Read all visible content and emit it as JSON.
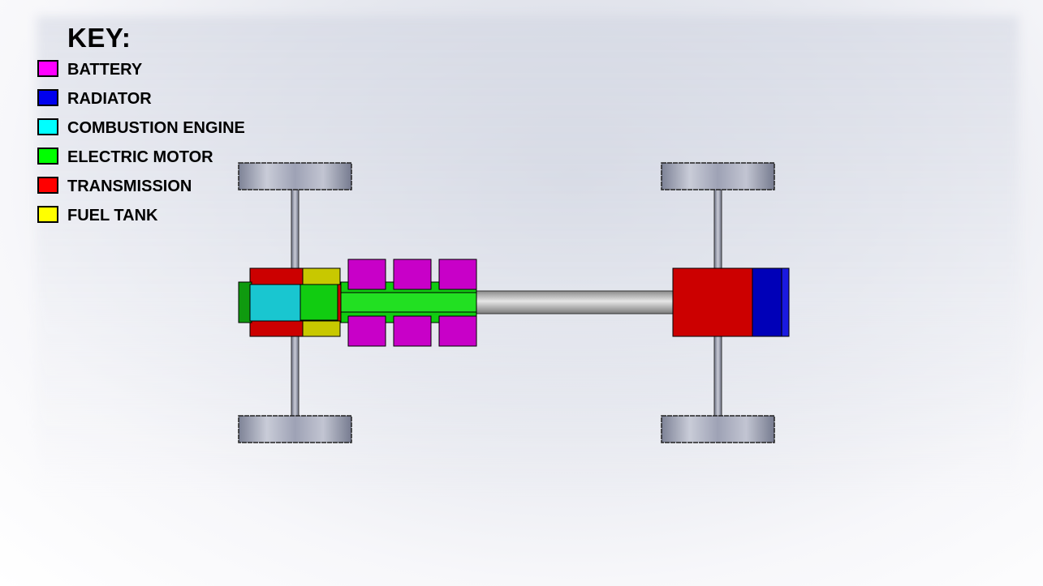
{
  "key": {
    "title": "KEY:",
    "items": [
      {
        "label": "BATTERY",
        "color": "#ff00ff"
      },
      {
        "label": "RADIATOR",
        "color": "#0000ee"
      },
      {
        "label": "COMBUSTION ENGINE",
        "color": "#00ffff"
      },
      {
        "label": "ELECTRIC MOTOR",
        "color": "#00ff00"
      },
      {
        "label": "TRANSMISSION",
        "color": "#ff0000"
      },
      {
        "label": "FUEL TANK",
        "color": "#ffff00"
      }
    ]
  },
  "components": {
    "battery": {
      "color": "#c800c8",
      "count": 6
    },
    "radiator": {
      "color": "#0000b8"
    },
    "combustion_engine": {
      "color": "#19c6d0"
    },
    "electric_motor": {
      "color": "#11cc11"
    },
    "transmission": {
      "color": "#cc0000"
    },
    "fuel_tank": {
      "color": "#c8c800"
    },
    "wheels": {
      "count": 4
    }
  }
}
